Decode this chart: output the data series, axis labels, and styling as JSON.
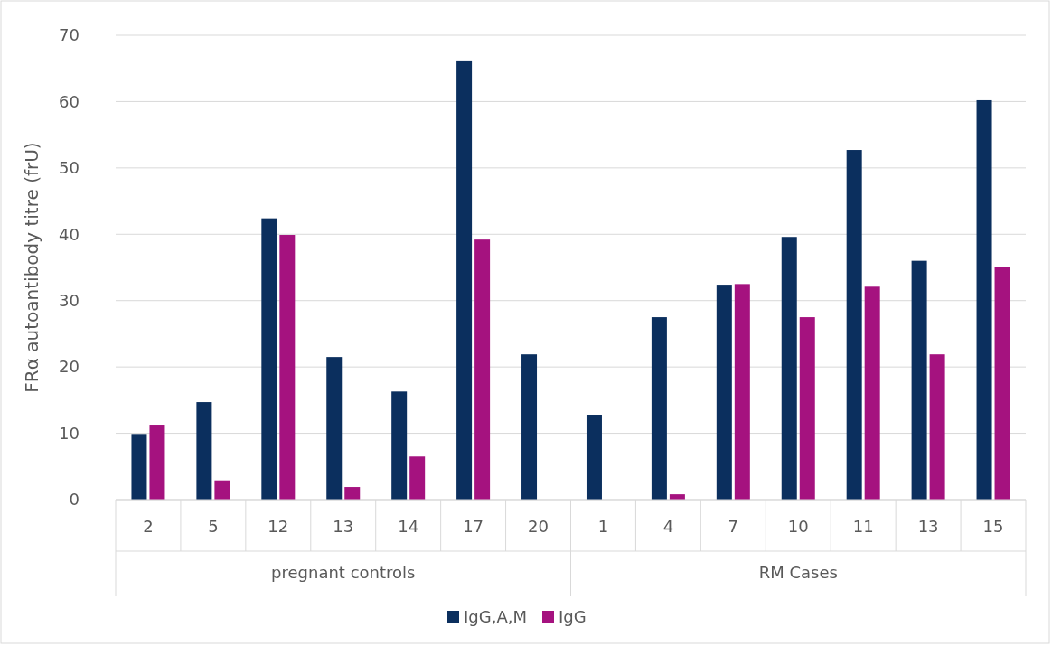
{
  "chart_data": {
    "type": "bar",
    "ylabel": "FRα autoantibody titre (frU)",
    "categories": [
      "2",
      "5",
      "12",
      "13",
      "14",
      "17",
      "20",
      "1",
      "4",
      "7",
      "10",
      "11",
      "13",
      "15"
    ],
    "series": [
      {
        "name": "IgG,A,M",
        "color": "#0b2f5e",
        "values": [
          9.9,
          14.7,
          42.4,
          21.5,
          16.3,
          66.2,
          21.9,
          12.8,
          27.5,
          32.4,
          39.6,
          52.7,
          36,
          60.2
        ]
      },
      {
        "name": "IgG",
        "color": "#a5127f",
        "values": [
          11.3,
          2.9,
          39.9,
          1.9,
          6.5,
          39.2,
          null,
          null,
          0.8,
          32.5,
          27.5,
          32.1,
          21.9,
          35
        ]
      }
    ],
    "annotations": [
      "pregnant controls",
      "RM Cases"
    ],
    "ylim": [
      0,
      70
    ],
    "yticks": [
      0,
      10,
      20,
      30,
      40,
      50,
      60,
      70
    ],
    "grid": "y",
    "legend": "bottom"
  }
}
